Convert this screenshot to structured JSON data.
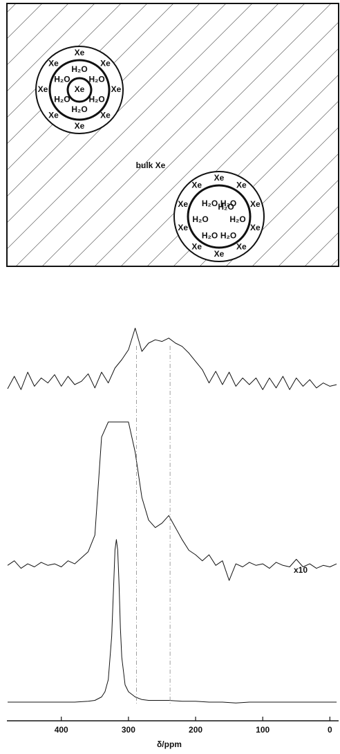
{
  "diagram": {
    "bulk_label": "bulk Xe",
    "clusters": [
      {
        "core": "Xe",
        "water": [
          "H₂O",
          "H₂O",
          "H₂O",
          "H₂O",
          "H₂O",
          "H₂O"
        ],
        "xenon": [
          "Xe",
          "Xe",
          "Xe",
          "Xe",
          "Xe",
          "Xe",
          "Xe",
          "Xe"
        ]
      },
      {
        "water": [
          "H₂O",
          "H₂O",
          "H₂O",
          "H₂O",
          "H₂O",
          "H₂O",
          "H₂O"
        ],
        "xenon": [
          "Xe",
          "Xe",
          "Xe",
          "Xe",
          "Xe",
          "Xe",
          "Xe",
          "Xe",
          "Xe",
          "Xe"
        ]
      }
    ]
  },
  "chart_data": [
    {
      "type": "line",
      "xlim": [
        481,
        -13
      ],
      "ylim": [
        0,
        100
      ],
      "x": [
        480,
        470,
        460,
        450,
        440,
        430,
        420,
        410,
        400,
        390,
        380,
        370,
        360,
        350,
        340,
        330,
        320,
        310,
        300,
        290,
        280,
        270,
        260,
        250,
        240,
        230,
        220,
        210,
        200,
        190,
        180,
        170,
        160,
        150,
        140,
        130,
        120,
        110,
        100,
        90,
        80,
        70,
        60,
        50,
        40,
        30,
        20,
        10,
        0,
        -10
      ],
      "series": [
        {
          "color": "#111111",
          "values": [
            15,
            30,
            14,
            35,
            18,
            28,
            22,
            32,
            18,
            30,
            20,
            24,
            33,
            16,
            35,
            22,
            40,
            50,
            62,
            88,
            60,
            70,
            74,
            72,
            76,
            70,
            66,
            58,
            48,
            38,
            22,
            36,
            20,
            35,
            18,
            28,
            20,
            28,
            14,
            28,
            16,
            30,
            14,
            28,
            18,
            26,
            16,
            22,
            18,
            20
          ]
        }
      ]
    },
    {
      "type": "line",
      "xlim": [
        481,
        -13
      ],
      "ylim": [
        -10,
        100
      ],
      "annotation": "x10",
      "x": [
        480,
        470,
        460,
        450,
        440,
        430,
        420,
        410,
        400,
        390,
        380,
        370,
        360,
        350,
        340,
        330,
        320,
        310,
        300,
        290,
        280,
        270,
        260,
        250,
        240,
        230,
        220,
        210,
        200,
        190,
        180,
        170,
        160,
        150,
        140,
        130,
        120,
        110,
        100,
        90,
        80,
        70,
        60,
        50,
        40,
        30,
        20,
        10,
        0,
        -10
      ],
      "series": [
        {
          "color": "#111111",
          "values": [
            5,
            8,
            3,
            6,
            4,
            7,
            5,
            6,
            4,
            8,
            6,
            10,
            14,
            25,
            90,
            100,
            100,
            100,
            100,
            80,
            50,
            35,
            30,
            33,
            38,
            30,
            22,
            15,
            12,
            8,
            12,
            5,
            8,
            -5,
            6,
            4,
            7,
            5,
            6,
            3,
            7,
            5,
            4,
            9,
            4,
            6,
            3,
            5,
            4,
            6
          ]
        }
      ]
    },
    {
      "type": "line",
      "xlim": [
        481,
        -13
      ],
      "ylim": [
        0,
        100
      ],
      "xlabel": "δ/ppm",
      "xticks": [
        400,
        300,
        200,
        100,
        0
      ],
      "vlines": [
        288,
        238
      ],
      "x": [
        480,
        460,
        440,
        420,
        400,
        380,
        360,
        350,
        340,
        335,
        330,
        325,
        322,
        320,
        318,
        316,
        314,
        312,
        310,
        305,
        300,
        290,
        280,
        270,
        260,
        250,
        240,
        220,
        200,
        180,
        160,
        140,
        120,
        100,
        80,
        60,
        40,
        20,
        0,
        -10
      ],
      "series": [
        {
          "color": "#111111",
          "values": [
            2,
            2,
            2,
            2,
            2,
            2,
            2.5,
            3,
            5,
            8,
            15,
            40,
            70,
            90,
            96,
            90,
            70,
            45,
            28,
            12,
            8,
            5,
            3.5,
            3,
            3,
            3,
            3,
            2.5,
            2.5,
            2,
            2,
            1.5,
            2,
            2,
            2,
            2,
            2,
            2,
            2,
            2
          ]
        }
      ]
    }
  ]
}
